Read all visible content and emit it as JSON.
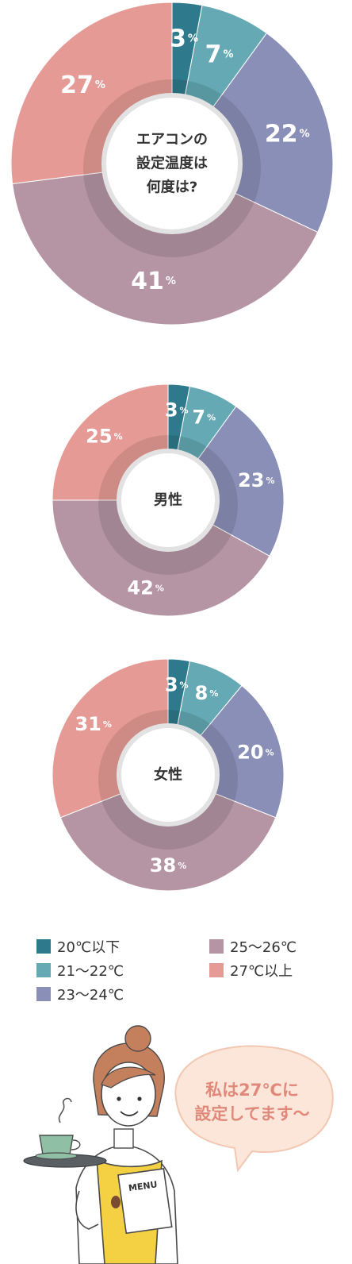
{
  "colors": {
    "20_below": "#2e7a8c",
    "21_22": "#64a9b3",
    "23_24": "#8a8fb7",
    "25_26": "#b595a3",
    "27_above": "#e69a95"
  },
  "chart_data": [
    {
      "type": "pie",
      "center_label": [
        "エアコンの",
        "設定温度は",
        "何度は?"
      ],
      "categories": [
        "20℃以下",
        "21～22℃",
        "23～24℃",
        "25～26℃",
        "27℃以上"
      ],
      "values": [
        3,
        7,
        22,
        41,
        27
      ],
      "value_labels": [
        "3",
        "7",
        "22",
        "41",
        "27"
      ],
      "unit": "%"
    },
    {
      "type": "pie",
      "center_label": [
        "男性"
      ],
      "categories": [
        "20℃以下",
        "21～22℃",
        "23～24℃",
        "25～26℃",
        "27℃以上"
      ],
      "values": [
        3,
        7,
        23,
        42,
        25
      ],
      "value_labels": [
        "3",
        "7",
        "23",
        "42",
        "25"
      ],
      "unit": "%"
    },
    {
      "type": "pie",
      "center_label": [
        "女性"
      ],
      "categories": [
        "20℃以下",
        "21～22℃",
        "23～24℃",
        "25～26℃",
        "27℃以上"
      ],
      "values": [
        3,
        8,
        20,
        38,
        31
      ],
      "value_labels": [
        "3",
        "8",
        "20",
        "38",
        "31"
      ],
      "unit": "%"
    }
  ],
  "legend": [
    {
      "label": "20℃以下",
      "color_key": "20_below"
    },
    {
      "label": "21～22℃",
      "color_key": "21_22"
    },
    {
      "label": "23～24℃",
      "color_key": "23_24"
    },
    {
      "label": "25～26℃",
      "color_key": "25_26"
    },
    {
      "label": "27℃以上",
      "color_key": "27_above"
    }
  ],
  "speech_bubble": {
    "line1": "私は27℃に",
    "line2": "設定してます～"
  },
  "menu_card": "MENU"
}
